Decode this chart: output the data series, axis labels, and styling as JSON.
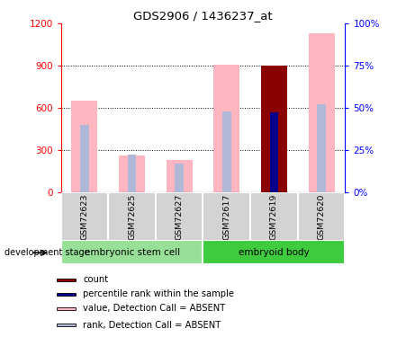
{
  "title": "GDS2906 / 1436237_at",
  "samples": [
    "GSM72623",
    "GSM72625",
    "GSM72627",
    "GSM72617",
    "GSM72619",
    "GSM72620"
  ],
  "value_absent": [
    650,
    260,
    230,
    910,
    0,
    1130
  ],
  "rank_absent": [
    480,
    270,
    205,
    575,
    0,
    625
  ],
  "count_present": [
    0,
    0,
    0,
    0,
    900,
    0
  ],
  "rank_present": [
    0,
    0,
    0,
    0,
    570,
    0
  ],
  "ylim_left": [
    0,
    1200
  ],
  "ylim_right": [
    0,
    100
  ],
  "yticks_left": [
    0,
    300,
    600,
    900,
    1200
  ],
  "yticks_right": [
    0,
    25,
    50,
    75,
    100
  ],
  "color_count": "#8B0000",
  "color_rank_present": "#00008B",
  "color_value_absent": "#FFB6C1",
  "color_rank_absent": "#B0B8D8",
  "legend_items": [
    {
      "label": "count",
      "color": "#8B0000"
    },
    {
      "label": "percentile rank within the sample",
      "color": "#00008B"
    },
    {
      "label": "value, Detection Call = ABSENT",
      "color": "#FFB6C1"
    },
    {
      "label": "rank, Detection Call = ABSENT",
      "color": "#B0B8D8"
    }
  ],
  "group_label": "development stage",
  "groups": [
    {
      "name": "embryonic stem cell",
      "indices": [
        0,
        1,
        2
      ],
      "color": "#98E098"
    },
    {
      "name": "embryoid body",
      "indices": [
        3,
        4,
        5
      ],
      "color": "#3ECB3E"
    }
  ]
}
